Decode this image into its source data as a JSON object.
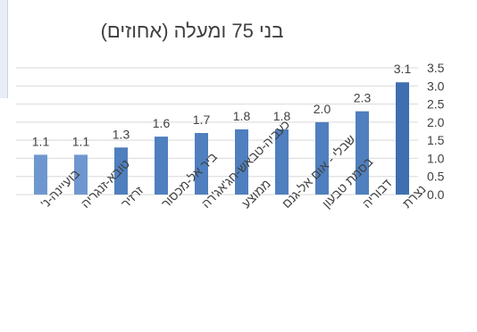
{
  "chart_data": {
    "type": "bar",
    "title": "בני 75 ומעלה (אחוזים)",
    "xlabel": "",
    "ylabel": "",
    "ylim": [
      0,
      3.5
    ],
    "yticks": [
      "0.0",
      "0.5",
      "1.0",
      "1.5",
      "2.0",
      "2.5",
      "3.0",
      "3.5"
    ],
    "grid": true,
    "legend": "none",
    "categories": [
      "בועיינה-נ'",
      "טובא-זנגריה",
      "זרזיר",
      "ביר אל-מכסור",
      "כעביה-טבאש-חג'אג'רה",
      "ממוצע",
      "שבלי - אום אל-גנם",
      "בסמת טבעון",
      "דבוריה",
      "נצרת"
    ],
    "values": [
      1.1,
      1.1,
      1.3,
      1.6,
      1.7,
      1.8,
      1.8,
      2.0,
      2.3,
      3.1
    ],
    "value_labels": [
      "1.1",
      "1.1",
      "1.3",
      "1.6",
      "1.7",
      "1.8",
      "1.8",
      "2.0",
      "2.3",
      "3.1"
    ],
    "colors": {
      "bar_light": "#6f97cf",
      "bar": "#4f7fbe",
      "bar_dark": "#3f6fb0",
      "grid": "#d9d9d9",
      "text": "#404040"
    }
  }
}
